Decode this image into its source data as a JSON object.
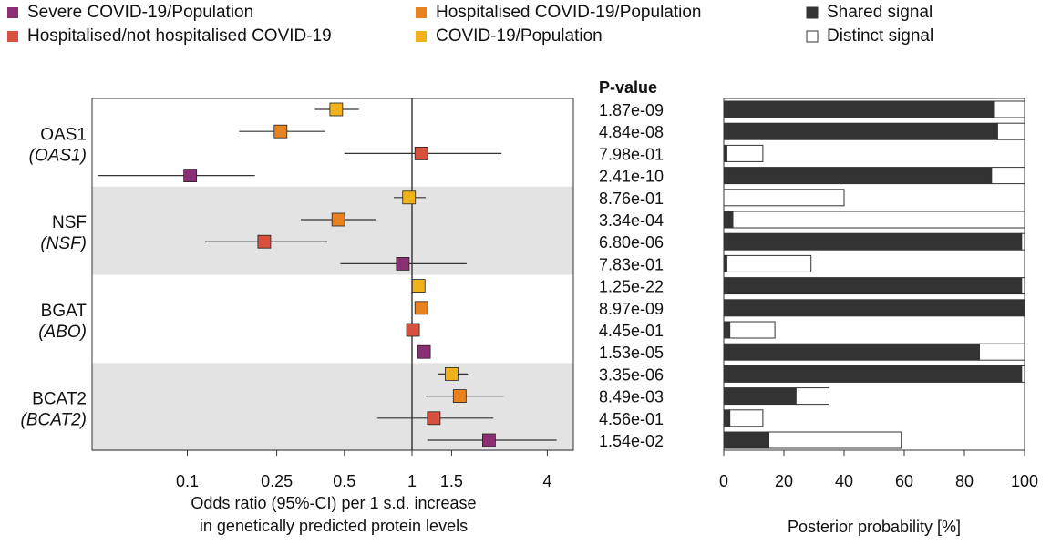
{
  "legend": {
    "outcomes": [
      {
        "label": "Severe COVID-19/Population",
        "color": "#8B2F74"
      },
      {
        "label": "Hospitalised/not hospitalised COVID-19",
        "color": "#D9503F"
      },
      {
        "label": "Hospitalised COVID-19/Population",
        "color": "#E8821E"
      },
      {
        "label": "COVID-19/Population",
        "color": "#F0B21A"
      }
    ],
    "signals": [
      {
        "label": "Shared signal",
        "color": "#333333"
      },
      {
        "label": "Distinct signal",
        "color": "#ffffff"
      }
    ]
  },
  "chart_data": [
    {
      "type": "scatter",
      "subtype": "forest-plot",
      "xlabel": [
        "Odds ratio (95%-CI) per 1 s.d. increase",
        "in genetically predicted protein levels"
      ],
      "xscale": "log",
      "xticks": [
        0.1,
        0.25,
        0.5,
        1,
        1.5,
        4
      ],
      "xtick_labels": [
        "0.1",
        "0.25",
        "0.5",
        "1",
        "1.5",
        "4"
      ],
      "reference_line": 1,
      "groups": [
        {
          "label": "OAS1",
          "gene": "(OAS1)",
          "shaded": false
        },
        {
          "label": "NSF",
          "gene": "(NSF)",
          "shaded": true
        },
        {
          "label": "BGAT",
          "gene": "(ABO)",
          "shaded": false
        },
        {
          "label": "BCAT2",
          "gene": "(BCAT2)",
          "shaded": true
        }
      ],
      "rows": [
        {
          "group": "OAS1",
          "outcome": "COVID-19/Population",
          "or": 0.46,
          "lo": 0.37,
          "hi": 0.58
        },
        {
          "group": "OAS1",
          "outcome": "Hospitalised COVID-19/Population",
          "or": 0.26,
          "lo": 0.17,
          "hi": 0.41
        },
        {
          "group": "OAS1",
          "outcome": "Hospitalised/not hospitalised COVID-19",
          "or": 1.1,
          "lo": 0.5,
          "hi": 2.5
        },
        {
          "group": "OAS1",
          "outcome": "Severe COVID-19/Population",
          "or": 0.103,
          "lo": 0.04,
          "hi": 0.2
        },
        {
          "group": "NSF",
          "outcome": "COVID-19/Population",
          "or": 0.97,
          "lo": 0.83,
          "hi": 1.15
        },
        {
          "group": "NSF",
          "outcome": "Hospitalised COVID-19/Population",
          "or": 0.47,
          "lo": 0.32,
          "hi": 0.69
        },
        {
          "group": "NSF",
          "outcome": "Hospitalised/not hospitalised COVID-19",
          "or": 0.22,
          "lo": 0.12,
          "hi": 0.42
        },
        {
          "group": "NSF",
          "outcome": "Severe COVID-19/Population",
          "or": 0.91,
          "lo": 0.48,
          "hi": 1.75
        },
        {
          "group": "BGAT",
          "outcome": "COVID-19/Population",
          "or": 1.07,
          "lo": 1.07,
          "hi": 1.07
        },
        {
          "group": "BGAT",
          "outcome": "Hospitalised COVID-19/Population",
          "or": 1.1,
          "lo": 1.1,
          "hi": 1.1
        },
        {
          "group": "BGAT",
          "outcome": "Hospitalised/not hospitalised COVID-19",
          "or": 1.01,
          "lo": 1.01,
          "hi": 1.01
        },
        {
          "group": "BGAT",
          "outcome": "Severe COVID-19/Population",
          "or": 1.13,
          "lo": 1.13,
          "hi": 1.13
        },
        {
          "group": "BCAT2",
          "outcome": "COVID-19/Population",
          "or": 1.5,
          "lo": 1.3,
          "hi": 1.77
        },
        {
          "group": "BCAT2",
          "outcome": "Hospitalised COVID-19/Population",
          "or": 1.63,
          "lo": 1.15,
          "hi": 2.55
        },
        {
          "group": "BCAT2",
          "outcome": "Hospitalised/not hospitalised COVID-19",
          "or": 1.25,
          "lo": 0.7,
          "hi": 2.3
        },
        {
          "group": "BCAT2",
          "outcome": "Severe COVID-19/Population",
          "or": 2.2,
          "lo": 1.17,
          "hi": 4.4
        }
      ]
    },
    {
      "type": "table",
      "title": "P-value",
      "values": [
        "1.87e-09",
        "4.84e-08",
        "7.98e-01",
        "2.41e-10",
        "8.76e-01",
        "3.34e-04",
        "6.80e-06",
        "7.83e-01",
        "1.25e-22",
        "8.97e-09",
        "4.45e-01",
        "1.53e-05",
        "3.35e-06",
        "8.49e-03",
        "4.56e-01",
        "1.54e-02"
      ]
    },
    {
      "type": "bar",
      "orientation": "horizontal",
      "stacked": true,
      "xlabel": "Posterior probability [%]",
      "xlim": [
        0,
        100
      ],
      "xticks": [
        0,
        20,
        40,
        60,
        80,
        100
      ],
      "series": [
        {
          "name": "Shared signal",
          "color": "#333333",
          "values": [
            90,
            91,
            1,
            89,
            0,
            3,
            99,
            1,
            99,
            100,
            2,
            85,
            99,
            24,
            2,
            15
          ]
        },
        {
          "name": "Distinct signal",
          "color": "#ffffff",
          "values": [
            10,
            9,
            12,
            11,
            40,
            97,
            1,
            28,
            1,
            0,
            15,
            15,
            1,
            11,
            11,
            44
          ]
        }
      ]
    }
  ]
}
